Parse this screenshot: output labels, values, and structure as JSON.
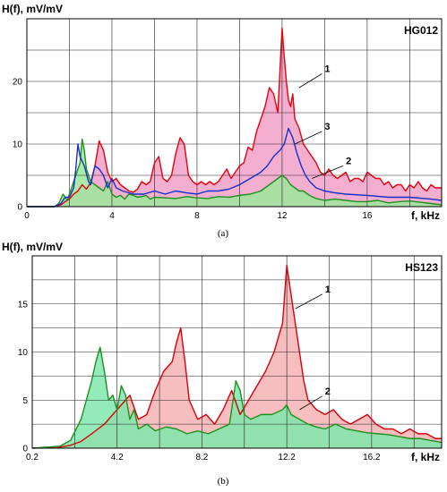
{
  "chart_data": [
    {
      "type": "area",
      "panel_tag": "HG012",
      "caption": "(a)",
      "ylabel": "H(f), mV/mV",
      "xlabel": "f, kHz",
      "xlim": [
        0,
        19.5
      ],
      "ylim": [
        0,
        30
      ],
      "xticks": [
        0,
        4,
        8,
        12,
        16
      ],
      "yticks": [
        0,
        10,
        20
      ],
      "grid": true,
      "series": [
        {
          "name": "1",
          "color": "#e8000b",
          "fill": "#f2a0c8",
          "x": [
            0,
            1.3,
            1.6,
            1.8,
            2,
            2.2,
            2.4,
            2.6,
            2.8,
            3,
            3.2,
            3.4,
            3.6,
            3.8,
            4,
            4.2,
            4.4,
            4.6,
            4.8,
            5,
            5.2,
            5.4,
            5.6,
            5.8,
            6,
            6.2,
            6.4,
            6.6,
            6.8,
            7,
            7.2,
            7.4,
            7.6,
            7.8,
            8,
            8.2,
            8.4,
            8.6,
            8.8,
            9,
            9.2,
            9.4,
            9.6,
            9.8,
            10,
            10.2,
            10.4,
            10.6,
            10.8,
            11,
            11.2,
            11.4,
            11.6,
            11.8,
            12,
            12.1,
            12.2,
            12.3,
            12.4,
            12.5,
            12.6,
            12.8,
            13,
            13.2,
            13.4,
            13.6,
            13.8,
            14,
            14.2,
            14.4,
            14.6,
            14.8,
            15,
            15.2,
            15.4,
            15.6,
            15.8,
            16,
            16.2,
            16.4,
            16.6,
            16.8,
            17,
            17.2,
            17.4,
            17.6,
            17.8,
            18,
            18.2,
            18.4,
            18.6,
            18.8,
            19,
            19.2,
            19.5
          ],
          "y": [
            0,
            0,
            0.3,
            0.8,
            1.2,
            2,
            2.5,
            3.5,
            2.8,
            3.8,
            6.5,
            10.5,
            9,
            5.5,
            4,
            4.5,
            3.5,
            3,
            2.5,
            2.3,
            2.8,
            4,
            3.5,
            4,
            7,
            8,
            4.5,
            4,
            5,
            8.5,
            11,
            10,
            5,
            4,
            3.5,
            4,
            3.5,
            4,
            3.5,
            4,
            5,
            6,
            4.5,
            5.5,
            6.5,
            7,
            9.5,
            9,
            12,
            14,
            16,
            19,
            18,
            15,
            28.5,
            24,
            20,
            17,
            16,
            18,
            14,
            12.5,
            10,
            9,
            8,
            7,
            5.5,
            5,
            6,
            5,
            4.5,
            5,
            5.5,
            4,
            4.5,
            4.5,
            4,
            5.5,
            5,
            4.5,
            4.5,
            3.5,
            4,
            3,
            3.5,
            3.5,
            2.5,
            3.5,
            3,
            4,
            3,
            2.5,
            3.5,
            3,
            3
          ]
        },
        {
          "name": "2",
          "color": "#1f8f1f",
          "fill": "#9be89b",
          "x": [
            0,
            1.3,
            1.5,
            1.7,
            1.9,
            2.1,
            2.3,
            2.5,
            2.6,
            2.7,
            2.8,
            3,
            3.2,
            3.4,
            3.6,
            3.8,
            4,
            4.2,
            4.4,
            4.6,
            4.8,
            5,
            5.2,
            5.4,
            5.6,
            5.8,
            6,
            6.5,
            7,
            7.5,
            8,
            8.5,
            9,
            9.5,
            10,
            10.5,
            11,
            11.2,
            11.4,
            11.6,
            11.8,
            12,
            12.2,
            12.4,
            12.6,
            12.8,
            13,
            13.2,
            13.4,
            13.6,
            14,
            14.5,
            15,
            15.5,
            16,
            16.5,
            17,
            17.5,
            18,
            18.5,
            19,
            19.5
          ],
          "y": [
            0,
            0,
            0.5,
            2,
            1,
            3,
            5,
            7,
            10.8,
            9,
            6,
            4,
            3.5,
            3,
            2.5,
            4,
            2,
            1.5,
            1.8,
            1.2,
            2,
            1.8,
            1.5,
            1.6,
            1.8,
            1.2,
            1.5,
            1.4,
            1.3,
            1.6,
            1.4,
            1.3,
            1.6,
            1.5,
            1.8,
            2,
            2.5,
            3,
            3.5,
            4,
            4.5,
            5,
            4.5,
            3.5,
            3,
            2.5,
            2.5,
            2,
            1.6,
            1.3,
            1,
            1.2,
            1,
            0.8,
            0.8,
            1,
            0.6,
            0.8,
            0.9,
            0.7,
            0.5,
            0.3
          ]
        },
        {
          "name": "3",
          "color": "#1530c8",
          "fill": "none",
          "x": [
            0,
            1.3,
            1.6,
            1.8,
            2,
            2.2,
            2.3,
            2.4,
            2.5,
            2.7,
            2.9,
            3,
            3.2,
            3.4,
            3.6,
            3.8,
            4,
            4.2,
            4.5,
            5,
            5.5,
            6,
            6.5,
            7,
            7.5,
            8,
            8.5,
            9,
            9.5,
            10,
            10.5,
            11,
            11.3,
            11.6,
            11.9,
            12.1,
            12.3,
            12.5,
            12.7,
            12.9,
            13.1,
            13.3,
            13.6,
            14,
            14.5,
            15,
            16,
            17,
            18,
            19,
            19.5
          ],
          "y": [
            0,
            0,
            0.5,
            1.5,
            1.5,
            3,
            6,
            10,
            8,
            6.5,
            4,
            3.5,
            6.5,
            6,
            5,
            3,
            4.5,
            3,
            2.5,
            2,
            2,
            2.5,
            2,
            2.5,
            2.2,
            2,
            2.5,
            2.5,
            2.8,
            3.5,
            4.5,
            5.5,
            6.5,
            8,
            9,
            10,
            12.5,
            11,
            8.5,
            6.5,
            5,
            4,
            3,
            2.5,
            2.2,
            2,
            1.8,
            1.5,
            1.5,
            1.2,
            1
          ]
        }
      ],
      "annotations": [
        {
          "text": "1",
          "x": 14.0,
          "y": 21.5,
          "ax": 12.8,
          "ay": 19.0
        },
        {
          "text": "3",
          "x": 14.0,
          "y": 12.3,
          "ax": 12.6,
          "ay": 10.0
        },
        {
          "text": "2",
          "x": 15.0,
          "y": 6.8,
          "ax": 13.4,
          "ay": 4.5
        }
      ]
    },
    {
      "type": "area",
      "panel_tag": "HS123",
      "caption": "(b)",
      "ylabel": "H(f), mV/mV",
      "xlabel": "f, kHz",
      "xlim": [
        0.2,
        19.5
      ],
      "ylim": [
        0,
        20
      ],
      "xticks": [
        0.2,
        4.2,
        8.2,
        12.2,
        16.2
      ],
      "yticks": [
        0,
        5,
        10,
        15
      ],
      "grid": true,
      "series": [
        {
          "name": "1",
          "color": "#d8000b",
          "fill": "#f5b3b3",
          "x": [
            0.2,
            1.5,
            2,
            2.5,
            3,
            3.3,
            3.6,
            4,
            4.4,
            4.8,
            5.2,
            5.6,
            6,
            6.4,
            6.8,
            7,
            7.2,
            7.4,
            7.6,
            7.8,
            8,
            8.4,
            8.8,
            9.2,
            9.6,
            10,
            10.4,
            10.8,
            11.2,
            11.6,
            11.8,
            12,
            12.2,
            12.4,
            12.6,
            12.8,
            13,
            13.2,
            13.6,
            14,
            14.4,
            14.8,
            15.2,
            15.6,
            16,
            16.4,
            16.8,
            17.2,
            17.6,
            18,
            18.4,
            18.8,
            19.2,
            19.5
          ],
          "y": [
            0,
            0.1,
            0.3,
            0.7,
            1.5,
            2,
            2.5,
            3.5,
            4.5,
            5.5,
            3,
            3.5,
            6,
            8,
            9,
            11,
            12.5,
            9,
            5,
            4,
            3,
            3.5,
            2.5,
            4,
            6,
            3.5,
            5,
            6.5,
            8,
            10,
            11.5,
            13,
            19,
            16,
            13,
            10,
            7,
            5,
            4,
            3.5,
            4,
            3,
            2.5,
            3,
            3.5,
            2.5,
            2,
            2,
            1.5,
            2,
            1.5,
            1.5,
            1,
            1
          ]
        },
        {
          "name": "2",
          "color": "#1f8f1f",
          "fill": "#7fe8ac",
          "x": [
            0.2,
            1.5,
            2,
            2.5,
            3,
            3.2,
            3.4,
            3.6,
            3.8,
            4,
            4.2,
            4.4,
            4.6,
            4.8,
            5,
            5.2,
            5.6,
            6,
            6.5,
            7,
            7.5,
            8,
            8.5,
            9,
            9.5,
            9.8,
            10,
            10.2,
            10.5,
            11,
            11.5,
            12,
            12.2,
            12.4,
            12.8,
            13.2,
            13.6,
            14,
            14.5,
            15,
            15.5,
            16,
            16.5,
            17,
            17.5,
            18,
            18.5,
            19,
            19.5
          ],
          "y": [
            0,
            0.2,
            0.8,
            3,
            7,
            9,
            10.5,
            8,
            5,
            5.5,
            4,
            6.5,
            5.5,
            3,
            4,
            2,
            2.5,
            1.8,
            2.2,
            2,
            1.5,
            1.8,
            1.5,
            2,
            2.5,
            7,
            6,
            3.5,
            3,
            3.5,
            3.5,
            4,
            4.5,
            3.5,
            3,
            2.5,
            2.2,
            2,
            2.5,
            2,
            1.8,
            1.6,
            1.5,
            1.4,
            1.2,
            1,
            1,
            0.8,
            0.6
          ]
        }
      ],
      "annotations": [
        {
          "text": "1",
          "x": 14.0,
          "y": 16.2,
          "ax": 12.6,
          "ay": 14.5
        },
        {
          "text": "2",
          "x": 14.0,
          "y": 5.6,
          "ax": 12.8,
          "ay": 4.0
        }
      ]
    }
  ]
}
